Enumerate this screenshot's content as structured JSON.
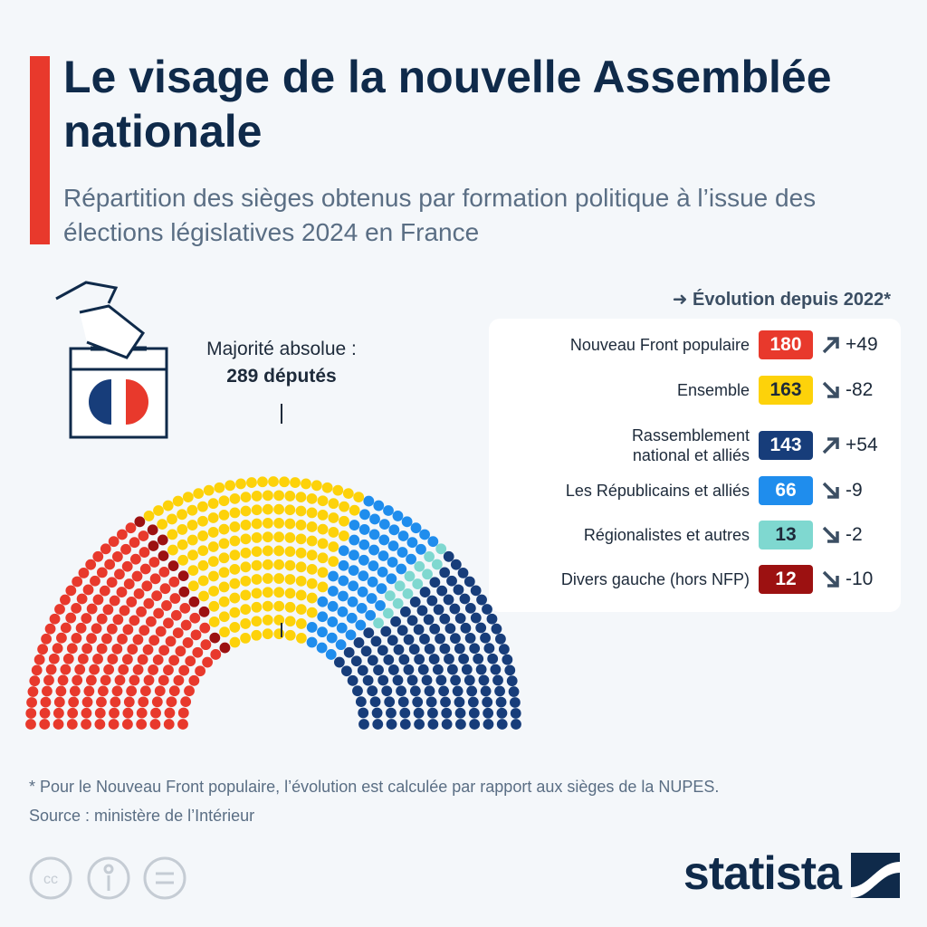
{
  "chart_data": {
    "type": "parliament",
    "title": "Le visage de la nouvelle Assemblée nationale",
    "subtitle": "Répartition des sièges obtenus par formation politique à l’issue des élections législatives 2024 en France",
    "majority_text": "Majorité absolue :",
    "majority": 289,
    "majority_label": "289 députés",
    "legend_title": "Évolution depuis 2022*",
    "categories": [
      "Nouveau Front populaire",
      "Ensemble",
      "Rassemblement national et alliés",
      "Les Républicains et alliés",
      "Régionalistes et autres",
      "Divers gauche (hors NFP)"
    ],
    "values": [
      180,
      163,
      143,
      66,
      13,
      12
    ],
    "colors": [
      "#e8392c",
      "#fdd20a",
      "#173d7a",
      "#1f8ded",
      "#7fd8d0",
      "#9c1111"
    ],
    "changes": [
      49,
      -82,
      54,
      -9,
      -2,
      -10
    ],
    "change_labels": [
      "+49",
      "-82",
      "+54",
      "-9",
      "-2",
      "-10"
    ],
    "footnote": "* Pour le Nouveau Front populaire, l’évolution est calculée par rapport aux sièges de la NUPES.",
    "source": "Source : ministère de l’Intérieur",
    "brand": "statista"
  }
}
